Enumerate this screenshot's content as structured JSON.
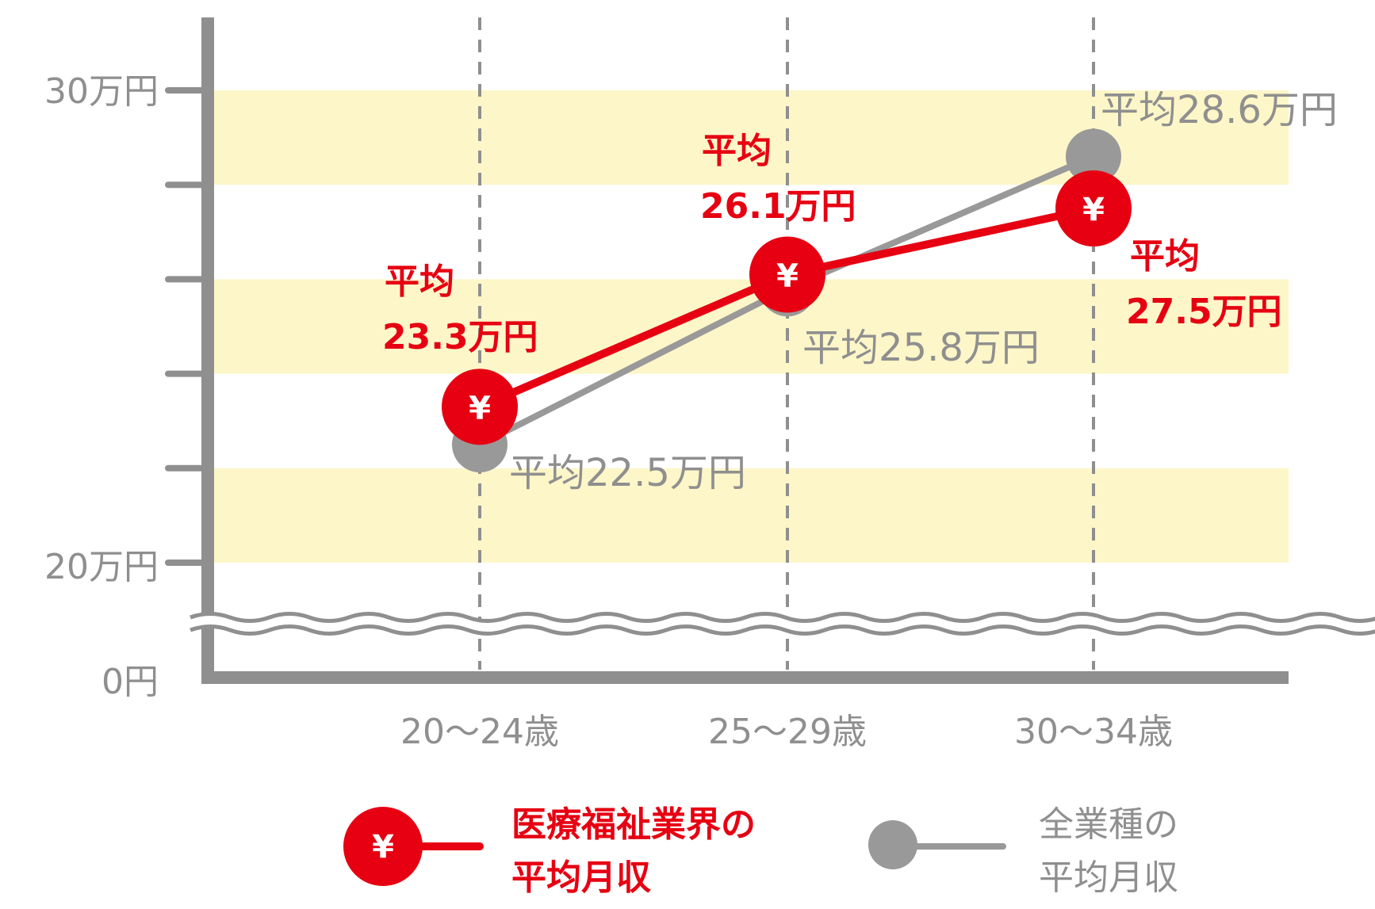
{
  "colors": {
    "red": "#e60012",
    "gray": "#999999",
    "band": "#fdf6c8",
    "axis": "#8f8f8f",
    "text_gray": "#8f8f8f"
  },
  "chart_data": {
    "type": "line",
    "categories": [
      "20〜24歳",
      "25〜29歳",
      "30〜34歳"
    ],
    "y_ticks": [
      {
        "value": 0,
        "label": "0円"
      },
      {
        "value": 20,
        "label": "20万円"
      },
      {
        "value": 30,
        "label": "30万円"
      }
    ],
    "ylim": [
      20,
      30
    ],
    "axis_break": true,
    "series": [
      {
        "name": "医療福祉業界の平均月収",
        "color": "#e60012",
        "marker_icon": "yen-icon",
        "marker_symbol": "¥",
        "values": [
          23.3,
          26.1,
          27.5
        ],
        "labels": [
          {
            "prefix": "平均",
            "value": "23.3万円"
          },
          {
            "prefix": "平均",
            "value": "26.1万円"
          },
          {
            "prefix": "平均",
            "value": "27.5万円"
          }
        ]
      },
      {
        "name": "全業種の平均月収",
        "color": "#999999",
        "values": [
          22.5,
          25.8,
          28.6
        ],
        "labels": [
          "平均22.5万円",
          "平均25.8万円",
          "平均28.6万円"
        ]
      }
    ],
    "legend": {
      "position": "bottom",
      "items": [
        {
          "line1": "医療福祉業界の",
          "line2": "平均月収",
          "symbol": "¥"
        },
        {
          "line1": "全業種の",
          "line2": "平均月収"
        }
      ]
    }
  }
}
